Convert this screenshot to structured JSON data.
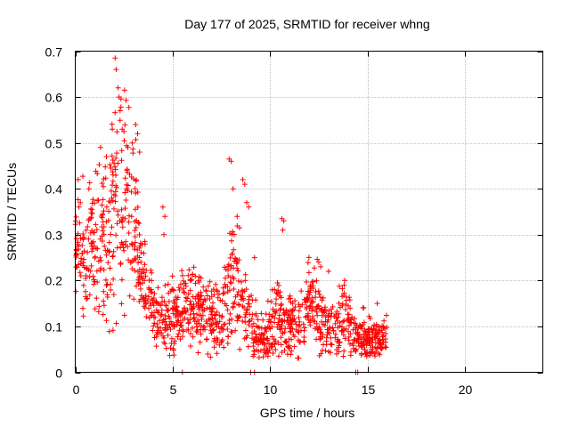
{
  "chart_data": {
    "type": "scatter",
    "title": "Day 177 of 2025, SRMTID for receiver whng",
    "xlabel": "GPS time / hours",
    "ylabel": "SRMTID / TECUs",
    "xlim": [
      0,
      24
    ],
    "ylim": [
      0,
      0.7
    ],
    "xticks": [
      0,
      5,
      10,
      15,
      20
    ],
    "yticks": [
      0,
      0.1,
      0.2,
      0.3,
      0.4,
      0.5,
      0.6,
      0.7
    ],
    "xtick_labels": [
      "0",
      "5",
      "10",
      "15",
      "20"
    ],
    "ytick_labels": [
      "0",
      "0.1",
      "0.2",
      "0.3",
      "0.4",
      "0.5",
      "0.6",
      "0.7"
    ],
    "grid": true,
    "marker": "+",
    "color": "#ff0000",
    "envelope": {
      "x": [
        0.0,
        0.2,
        0.5,
        0.8,
        1.0,
        1.3,
        1.6,
        1.9,
        2.0,
        2.3,
        2.6,
        2.9,
        3.1,
        3.3,
        3.6,
        3.9,
        4.2,
        4.5,
        4.8,
        5.2,
        5.6,
        6.0,
        6.5,
        7.0,
        7.4,
        7.8,
        8.0,
        8.3,
        8.6,
        9.0,
        9.3,
        9.6,
        10.0,
        10.4,
        10.8,
        11.2,
        11.6,
        12.0,
        12.4,
        12.8,
        13.2,
        13.6,
        14.0,
        14.4,
        14.8,
        15.2,
        15.6,
        16.0
      ],
      "median": [
        0.26,
        0.28,
        0.25,
        0.27,
        0.29,
        0.28,
        0.27,
        0.33,
        0.37,
        0.36,
        0.38,
        0.36,
        0.33,
        0.24,
        0.19,
        0.15,
        0.12,
        0.1,
        0.12,
        0.13,
        0.12,
        0.14,
        0.13,
        0.12,
        0.11,
        0.16,
        0.2,
        0.18,
        0.15,
        0.12,
        0.09,
        0.07,
        0.09,
        0.12,
        0.1,
        0.1,
        0.11,
        0.15,
        0.14,
        0.1,
        0.09,
        0.12,
        0.11,
        0.08,
        0.08,
        0.07,
        0.07,
        0.08
      ],
      "spread": [
        0.06,
        0.08,
        0.09,
        0.08,
        0.1,
        0.1,
        0.1,
        0.14,
        0.16,
        0.14,
        0.14,
        0.12,
        0.1,
        0.06,
        0.05,
        0.04,
        0.04,
        0.03,
        0.05,
        0.05,
        0.06,
        0.06,
        0.05,
        0.05,
        0.05,
        0.08,
        0.09,
        0.08,
        0.06,
        0.05,
        0.03,
        0.03,
        0.04,
        0.06,
        0.04,
        0.04,
        0.05,
        0.06,
        0.06,
        0.04,
        0.04,
        0.05,
        0.04,
        0.03,
        0.03,
        0.03,
        0.03,
        0.03
      ],
      "n_points": 1400
    },
    "peaks": [
      {
        "x": 0.15,
        "y": 0.42
      },
      {
        "x": 0.7,
        "y": 0.4
      },
      {
        "x": 1.3,
        "y": 0.49
      },
      {
        "x": 1.6,
        "y": 0.47
      },
      {
        "x": 1.9,
        "y": 0.53
      },
      {
        "x": 2.05,
        "y": 0.685
      },
      {
        "x": 2.1,
        "y": 0.66
      },
      {
        "x": 2.2,
        "y": 0.62
      },
      {
        "x": 2.25,
        "y": 0.6
      },
      {
        "x": 2.3,
        "y": 0.57
      },
      {
        "x": 2.7,
        "y": 0.49
      },
      {
        "x": 3.1,
        "y": 0.54
      },
      {
        "x": 3.2,
        "y": 0.52
      },
      {
        "x": 3.3,
        "y": 0.48
      },
      {
        "x": 4.5,
        "y": 0.36
      },
      {
        "x": 4.6,
        "y": 0.34
      },
      {
        "x": 4.55,
        "y": 0.3
      },
      {
        "x": 7.9,
        "y": 0.465
      },
      {
        "x": 8.0,
        "y": 0.46
      },
      {
        "x": 8.1,
        "y": 0.4
      },
      {
        "x": 8.6,
        "y": 0.42
      },
      {
        "x": 8.7,
        "y": 0.41
      },
      {
        "x": 8.8,
        "y": 0.37
      },
      {
        "x": 8.9,
        "y": 0.36
      },
      {
        "x": 9.2,
        "y": 0.25
      },
      {
        "x": 10.6,
        "y": 0.335
      },
      {
        "x": 10.7,
        "y": 0.33
      },
      {
        "x": 10.65,
        "y": 0.31
      },
      {
        "x": 12.5,
        "y": 0.24
      },
      {
        "x": 12.6,
        "y": 0.23
      },
      {
        "x": 13.0,
        "y": 0.22
      },
      {
        "x": 13.8,
        "y": 0.19
      },
      {
        "x": 15.5,
        "y": 0.15
      }
    ],
    "zeros": [
      5.5,
      9.0,
      9.2,
      14.4,
      14.5
    ]
  }
}
